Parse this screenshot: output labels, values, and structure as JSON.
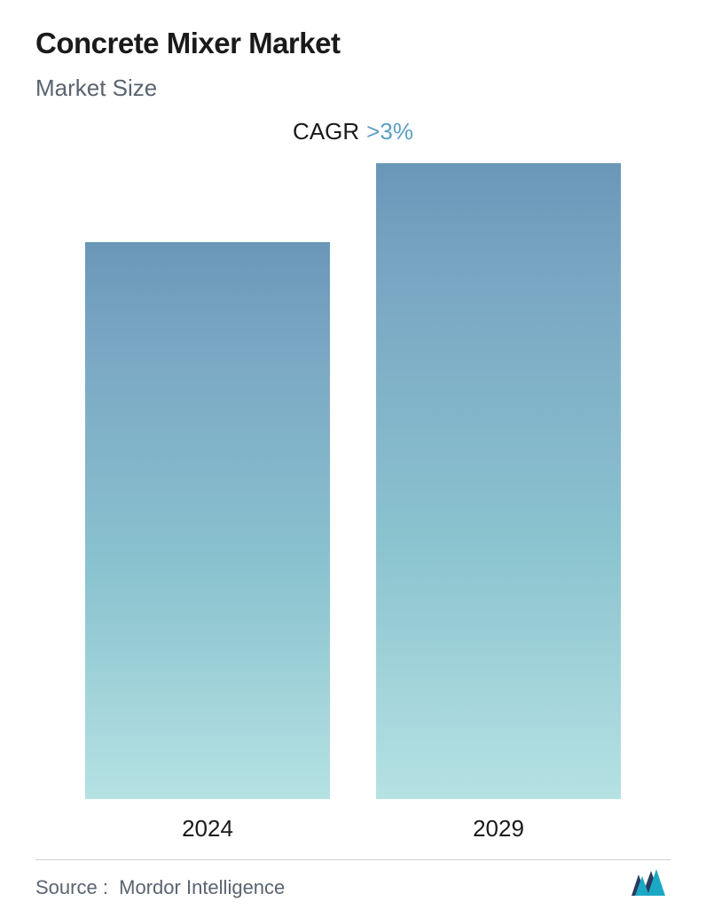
{
  "header": {
    "title": "Concrete Mixer Market",
    "subtitle": "Market Size",
    "cagr_label": "CAGR",
    "cagr_value": ">3%"
  },
  "chart": {
    "type": "bar",
    "categories": [
      "2024",
      "2029"
    ],
    "values": [
      82,
      95
    ],
    "bar_gradient_top": "#6a97b8",
    "bar_gradient_bottom": "#b5e2e3",
    "background_color": "#ffffff",
    "label_fontsize": 26,
    "label_color": "#1a1a1a"
  },
  "footer": {
    "source_label": "Source :",
    "source_name": "Mordor Intelligence",
    "logo_colors": {
      "front": "#1ba8c4",
      "back": "#2a3b5f"
    }
  }
}
